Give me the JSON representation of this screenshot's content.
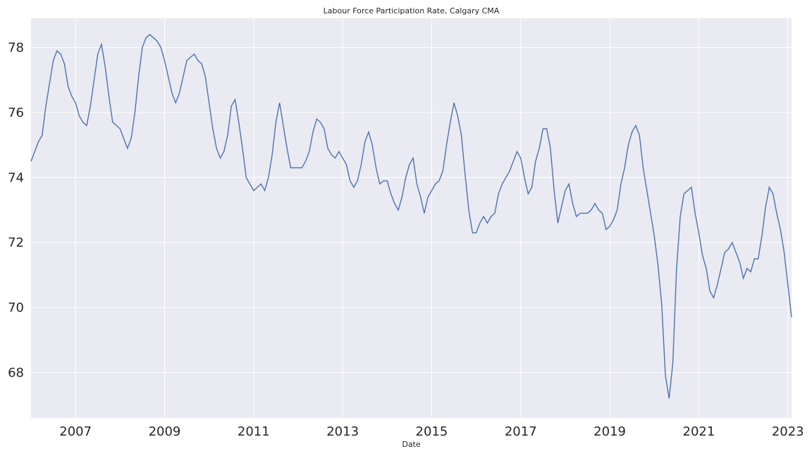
{
  "chart_data": {
    "type": "line",
    "title": "Labour Force Participation Rate, Calgary CMA",
    "xlabel": "Date",
    "ylabel": "",
    "xlim": [
      "2006-01",
      "2023-02"
    ],
    "ylim": [
      66.6,
      78.9
    ],
    "x_ticks": [
      "2007",
      "2009",
      "2011",
      "2013",
      "2015",
      "2017",
      "2019",
      "2021",
      "2023"
    ],
    "y_ticks": [
      68,
      70,
      72,
      74,
      76,
      78
    ],
    "grid": true,
    "legend": "none",
    "colors": {
      "background": "#eaeaf2",
      "grid": "#ffffff",
      "line": "#4c72b0"
    },
    "series": [
      {
        "start": "2006-01",
        "frequency": "monthly",
        "values": [
          74.5,
          74.8,
          75.1,
          75.3,
          76.2,
          76.9,
          77.6,
          77.9,
          77.8,
          77.5,
          76.8,
          76.5,
          76.3,
          75.9,
          75.7,
          75.6,
          76.2,
          77.0,
          77.8,
          78.1,
          77.4,
          76.5,
          75.7,
          75.6,
          75.5,
          75.2,
          74.9,
          75.2,
          76.0,
          77.1,
          78.0,
          78.3,
          78.4,
          78.3,
          78.2,
          78.0,
          77.6,
          77.1,
          76.6,
          76.3,
          76.6,
          77.1,
          77.6,
          77.7,
          77.8,
          77.6,
          77.5,
          77.1,
          76.3,
          75.5,
          74.9,
          74.6,
          74.8,
          75.3,
          76.2,
          76.4,
          75.7,
          74.9,
          74.0,
          73.8,
          73.6,
          73.7,
          73.8,
          73.6,
          74.0,
          74.7,
          75.7,
          76.3,
          75.6,
          74.9,
          74.3,
          74.3,
          74.3,
          74.3,
          74.5,
          74.8,
          75.4,
          75.8,
          75.7,
          75.5,
          74.9,
          74.7,
          74.6,
          74.8,
          74.6,
          74.4,
          73.9,
          73.7,
          73.9,
          74.4,
          75.1,
          75.4,
          75.0,
          74.3,
          73.8,
          73.9,
          73.9,
          73.5,
          73.2,
          73.0,
          73.4,
          74.0,
          74.4,
          74.6,
          73.8,
          73.4,
          72.9,
          73.4,
          73.6,
          73.8,
          73.9,
          74.2,
          75.0,
          75.7,
          76.3,
          75.9,
          75.3,
          74.1,
          73.0,
          72.3,
          72.3,
          72.6,
          72.8,
          72.6,
          72.8,
          72.9,
          73.5,
          73.8,
          74.0,
          74.2,
          74.5,
          74.8,
          74.6,
          74.0,
          73.5,
          73.7,
          74.5,
          74.9,
          75.5,
          75.5,
          74.9,
          73.6,
          72.6,
          73.1,
          73.6,
          73.8,
          73.2,
          72.8,
          72.9,
          72.9,
          72.9,
          73.0,
          73.2,
          73.0,
          72.9,
          72.4,
          72.5,
          72.7,
          73.0,
          73.8,
          74.3,
          75.0,
          75.4,
          75.6,
          75.3,
          74.3,
          73.6,
          72.9,
          72.2,
          71.3,
          70.1,
          67.9,
          67.2,
          68.3,
          71.2,
          72.8,
          73.5,
          73.6,
          73.7,
          72.9,
          72.3,
          71.6,
          71.2,
          70.5,
          70.3,
          70.7,
          71.2,
          71.7,
          71.8,
          72.0,
          71.7,
          71.4,
          70.9,
          71.2,
          71.1,
          71.5,
          71.5,
          72.2,
          73.1,
          73.7,
          73.5,
          72.9,
          72.4,
          71.7,
          70.7,
          69.7
        ]
      }
    ]
  }
}
